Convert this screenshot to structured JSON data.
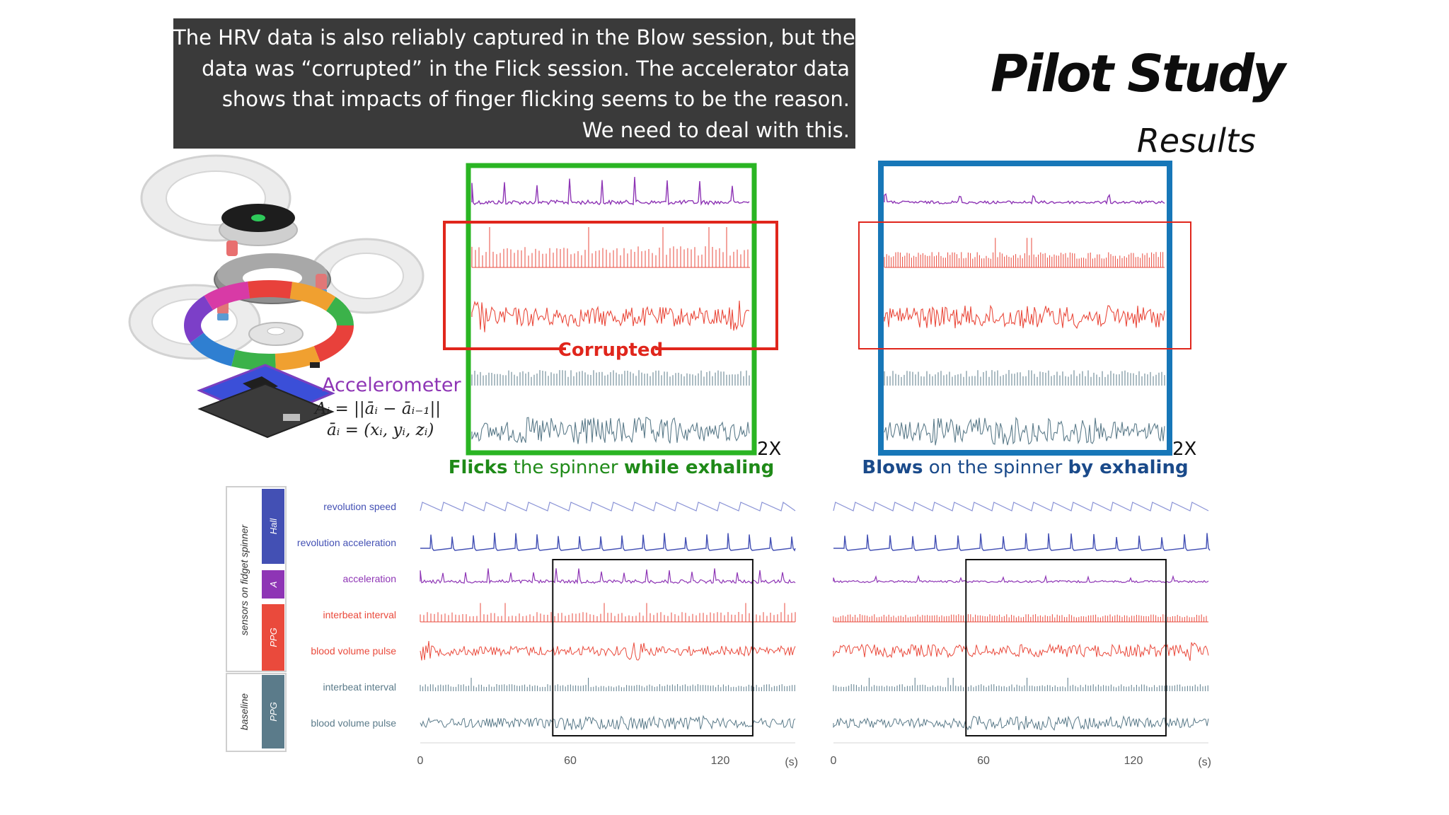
{
  "caption": {
    "lines": [
      "The HRV data is also reliably captured in the Blow session, but the",
      "data was “corrupted” in the Flick session. The accelerator data",
      "shows that impacts of finger flicking seems to be the reason.",
      "We need to deal with this."
    ]
  },
  "title": "Pilot Study",
  "subtitle": "Results",
  "device": {
    "accelerometer_label": "Accelerometer",
    "formula_1": "Aᵢ = ||āᵢ − āᵢ₋₁||",
    "formula_2": "āᵢ = (xᵢ, yᵢ, zᵢ)"
  },
  "zoom": {
    "corrupted_label": "Corrupted",
    "flick_scale": "2X",
    "blow_scale": "2X",
    "flick_caption_bold_1": "Flicks",
    "flick_caption_normal": " the spinner ",
    "flick_caption_bold_2": "while exhaling",
    "blow_caption_bold_1": "Blows",
    "blow_caption_normal": " on the spinner ",
    "blow_caption_bold_2": "by exhaling"
  },
  "legend": {
    "group_sensors": "sensors on fidget spinner",
    "group_baseline": "baseline",
    "tag_hall": "Hall",
    "tag_a": "A",
    "tag_ppg": "PPG",
    "tag_ppg_baseline": "PPG"
  },
  "colors": {
    "hall": "#4350b4",
    "accel": "#8e35b5",
    "ppg": "#ea4a3c",
    "baseline": "#5b7b8a",
    "green_box": "#2ab523",
    "red_box": "#e0261c",
    "blue_box": "#1777b8",
    "blue_text": "#1a4a8a",
    "green_text": "#1f8a18"
  },
  "chart_data": {
    "type": "line",
    "title": "Pilot Study",
    "xlabel": "(s)",
    "ylabel": "",
    "xlim": [
      0,
      150
    ],
    "x_ticks": [
      0,
      60,
      120
    ],
    "x_tick_labels": [
      "0",
      "60",
      "120"
    ],
    "highlight_window_s": [
      53,
      133
    ],
    "series": [
      {
        "name": "revolution speed",
        "group": "Hall",
        "color": "#8a93d6"
      },
      {
        "name": "revolution acceleration",
        "group": "Hall",
        "color": "#4350b4"
      },
      {
        "name": "acceleration",
        "group": "A",
        "color": "#8e35b5"
      },
      {
        "name": "interbeat interval",
        "group": "PPG",
        "color": "#ea4a3c"
      },
      {
        "name": "blood volume pulse",
        "group": "PPG",
        "color": "#ea4a3c"
      },
      {
        "name": "interbeat interval",
        "group": "baseline PPG",
        "color": "#5b7b8a"
      },
      {
        "name": "blood volume pulse",
        "group": "baseline PPG",
        "color": "#5b7b8a"
      }
    ],
    "sessions": [
      "Flick",
      "Blow"
    ]
  }
}
